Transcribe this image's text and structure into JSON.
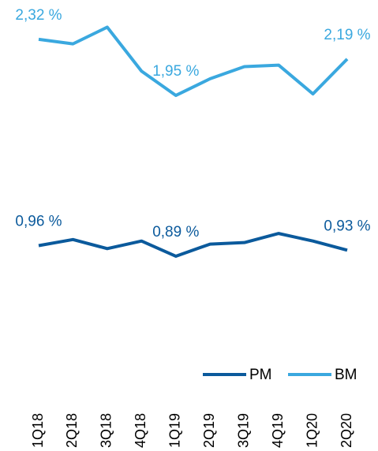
{
  "chart_data": {
    "type": "line",
    "categories": [
      "1Q18",
      "2Q18",
      "3Q18",
      "4Q18",
      "1Q19",
      "2Q19",
      "3Q19",
      "4Q19",
      "1Q20",
      "2Q20"
    ],
    "series": [
      {
        "name": "PM",
        "color": "#0b5a9c",
        "values": [
          0.96,
          1.0,
          0.94,
          0.99,
          0.89,
          0.97,
          0.98,
          1.04,
          0.99,
          0.93
        ],
        "value_labels": [
          "0,96 %",
          null,
          null,
          null,
          "0,89 %",
          null,
          null,
          null,
          null,
          "0,93 %"
        ]
      },
      {
        "name": "BM",
        "color": "#3aa8df",
        "values": [
          2.32,
          2.29,
          2.4,
          2.11,
          1.95,
          2.06,
          2.14,
          2.15,
          1.96,
          2.19
        ],
        "value_labels": [
          "2,32 %",
          null,
          null,
          null,
          "1,95 %",
          null,
          null,
          null,
          null,
          "2,19 %"
        ]
      }
    ],
    "ylim": [
      0.5,
      2.6
    ],
    "legend": "bottom-right"
  }
}
